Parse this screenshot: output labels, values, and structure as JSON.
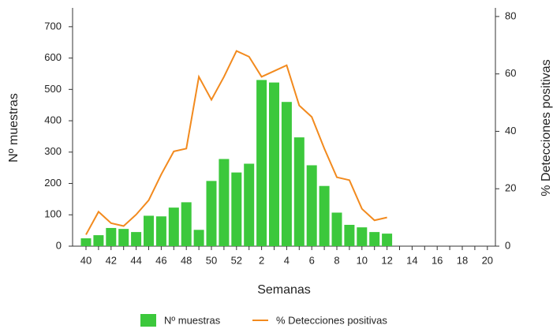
{
  "chart_data": {
    "type": "bar-line",
    "x_label": "Semanas",
    "y_label": "Nº muestras",
    "y2_label": "% Detecciones positivas",
    "categories": [
      "40",
      null,
      "42",
      null,
      "44",
      null,
      "46",
      null,
      "48",
      null,
      "50",
      null,
      "52",
      null,
      "2",
      null,
      "4",
      null,
      "6",
      null,
      "8",
      null,
      "10",
      null,
      "12",
      null,
      "14",
      null,
      "16",
      null,
      "18",
      null,
      "20"
    ],
    "series": [
      {
        "name": "Nº muestras",
        "type": "bar",
        "color": "#3cc83c",
        "values": [
          25,
          35,
          58,
          55,
          45,
          97,
          95,
          123,
          140,
          52,
          208,
          278,
          235,
          263,
          530,
          522,
          460,
          347,
          258,
          192,
          107,
          68,
          60,
          45,
          40,
          null,
          null,
          null,
          null,
          null,
          null,
          null,
          null
        ]
      },
      {
        "name": "% Detecciones positivas",
        "type": "line",
        "axis": "y2",
        "color": "#f28a1e",
        "values": [
          4,
          12,
          8,
          7,
          11,
          16,
          25,
          33,
          34,
          59,
          51,
          59,
          68,
          66,
          59,
          61,
          63,
          49,
          45,
          34,
          24,
          23,
          13,
          9,
          10,
          null,
          null,
          null,
          null,
          null,
          null,
          null,
          null
        ]
      }
    ],
    "ylim": [
      0,
      760
    ],
    "yticks": [
      0,
      100,
      200,
      300,
      400,
      500,
      600,
      700
    ],
    "y2lim": [
      0,
      83
    ],
    "y2ticks": [
      0,
      20,
      40,
      60,
      80
    ],
    "legend": "bottom"
  }
}
